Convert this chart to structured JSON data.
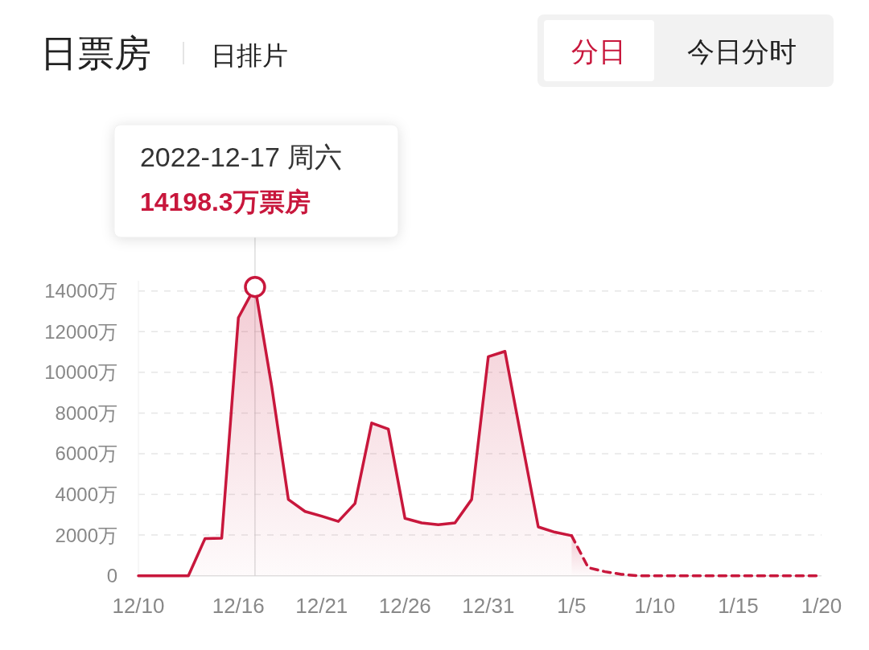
{
  "chart_data": {
    "type": "area",
    "title": "日票房",
    "annotations": [
      "2022-12-17 周六",
      {
        "text": "14198.3万票房",
        "x": "2022-12-17",
        "y": 14198.3
      },
      "日排片",
      "分日",
      "今日分时"
    ],
    "x": [
      "2022-12-10",
      "2022-12-11",
      "2022-12-12",
      "2022-12-13",
      "2022-12-14",
      "2022-12-15",
      "2022-12-16",
      "2022-12-17",
      "2022-12-18",
      "2022-12-19",
      "2022-12-20",
      "2022-12-21",
      "2022-12-22",
      "2022-12-23",
      "2022-12-24",
      "2022-12-25",
      "2022-12-26",
      "2022-12-27",
      "2022-12-28",
      "2022-12-29",
      "2022-12-30",
      "2022-12-31",
      "2023-01-01",
      "2023-01-02",
      "2023-01-03",
      "2023-01-04",
      "2023-01-05"
    ],
    "series": [
      {
        "color": "#c8173c",
        "line_style": "solid",
        "values": [
          0,
          0,
          0,
          0,
          1830,
          1850,
          12680,
          14198.3,
          9320,
          3750,
          3160,
          2930,
          2670,
          3550,
          7510,
          7210,
          2820,
          2600,
          2510,
          2600,
          3750,
          10770,
          11030,
          6680,
          2400,
          2140,
          1970
        ]
      },
      {
        "color": "#c8173c",
        "line_style": "dashed",
        "x": [
          "2023-01-05",
          "2023-01-06",
          "2023-01-07",
          "2023-01-08",
          "2023-01-09",
          "2023-01-10",
          "2023-01-11",
          "2023-01-12",
          "2023-01-13",
          "2023-01-14",
          "2023-01-15",
          "2023-01-16",
          "2023-01-17",
          "2023-01-18",
          "2023-01-19",
          "2023-01-20"
        ],
        "values": [
          1970,
          400,
          200,
          70,
          0,
          0,
          0,
          0,
          0,
          0,
          0,
          0,
          0,
          0,
          0,
          0
        ]
      }
    ],
    "xlim": [
      "2022-12-10",
      "2023-01-20"
    ],
    "xticks": [
      {
        "value": "2022-12-10",
        "label": "12/10"
      },
      {
        "value": "2022-12-16",
        "label": "12/16"
      },
      {
        "value": "2022-12-21",
        "label": "12/21"
      },
      {
        "value": "2022-12-26",
        "label": "12/26"
      },
      {
        "value": "2022-12-31",
        "label": "12/31"
      },
      {
        "value": "2023-01-05",
        "label": "1/5"
      },
      {
        "value": "2023-01-10",
        "label": "1/10"
      },
      {
        "value": "2023-01-15",
        "label": "1/15"
      },
      {
        "value": "2023-01-20",
        "label": "1/20"
      }
    ],
    "ylim": [
      0,
      14500
    ],
    "yticks": [
      0,
      {
        "value": 2000,
        "label": "2000万"
      },
      {
        "value": 4000,
        "label": "4000万"
      },
      {
        "value": 6000,
        "label": "6000万"
      },
      {
        "value": 8000,
        "label": "8000万"
      },
      {
        "value": 10000,
        "label": "10000万"
      },
      {
        "value": 12000,
        "label": "12000万"
      },
      {
        "value": 14000,
        "label": "14000万"
      }
    ],
    "ref_lines": [
      {
        "axis": "x",
        "value": "2022-12-17",
        "color": "#cccccc"
      }
    ],
    "grid": "y"
  }
}
